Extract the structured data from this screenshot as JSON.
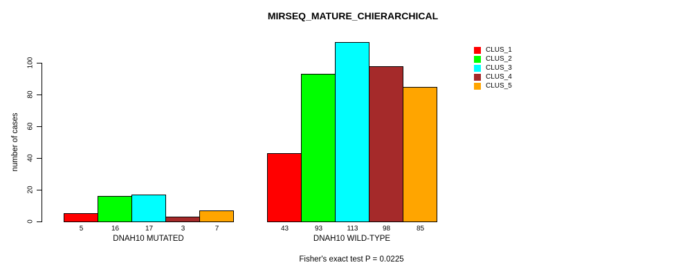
{
  "title": "MIRSEQ_MATURE_CHIERARCHICAL",
  "y_axis": {
    "label": "number of cases",
    "ticks": [
      0,
      20,
      40,
      60,
      80,
      100
    ]
  },
  "footer": "Fisher's exact test P = 0.0225",
  "legend": {
    "items": [
      {
        "label": "CLUS_1",
        "color": "#FF0000"
      },
      {
        "label": "CLUS_2",
        "color": "#00FF00"
      },
      {
        "label": "CLUS_3",
        "color": "#00FFFF"
      },
      {
        "label": "CLUS_4",
        "color": "#A52A2A"
      },
      {
        "label": "CLUS_5",
        "color": "#FFA500"
      }
    ]
  },
  "chart_data": {
    "type": "bar",
    "title": "MIRSEQ_MATURE_CHIERARCHICAL",
    "xlabel": "",
    "ylabel": "number of cases",
    "ylim": [
      0,
      115
    ],
    "yticks": [
      0,
      20,
      40,
      60,
      80,
      100
    ],
    "grid": false,
    "legend_position": "right-outside",
    "categories": [
      "DNAH10 MUTATED",
      "DNAH10 WILD-TYPE"
    ],
    "series": [
      {
        "name": "CLUS_1",
        "color": "#FF0000",
        "values": [
          5,
          43
        ]
      },
      {
        "name": "CLUS_2",
        "color": "#00FF00",
        "values": [
          16,
          93
        ]
      },
      {
        "name": "CLUS_3",
        "color": "#00FFFF",
        "values": [
          17,
          113
        ]
      },
      {
        "name": "CLUS_4",
        "color": "#A52A2A",
        "values": [
          3,
          98
        ]
      },
      {
        "name": "CLUS_5",
        "color": "#FFA500",
        "values": [
          7,
          85
        ]
      }
    ],
    "bar_value_labels": [
      [
        5,
        16,
        17,
        3,
        7
      ],
      [
        43,
        93,
        113,
        98,
        85
      ]
    ],
    "annotation": "Fisher's exact test P = 0.0225"
  }
}
